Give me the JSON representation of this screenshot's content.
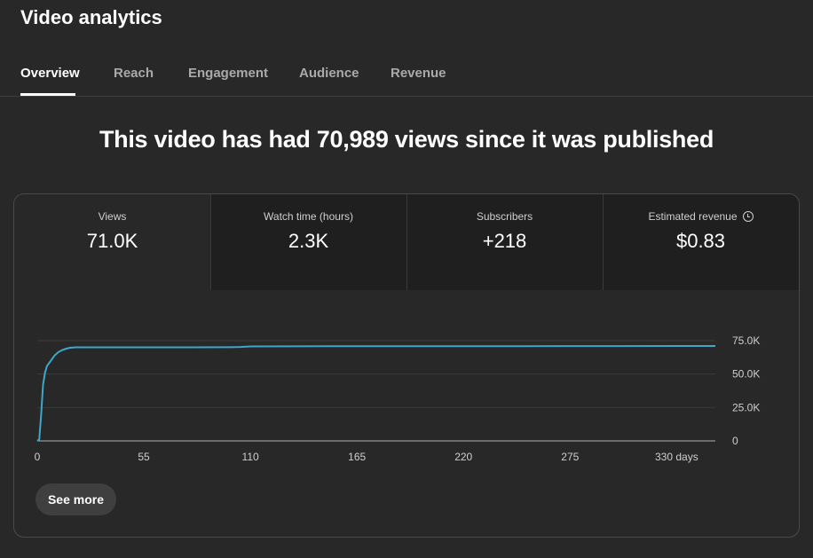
{
  "header": {
    "title": "Video analytics"
  },
  "tabs": [
    {
      "label": "Overview",
      "active": true
    },
    {
      "label": "Reach"
    },
    {
      "label": "Engagement"
    },
    {
      "label": "Audience"
    },
    {
      "label": "Revenue"
    }
  ],
  "headline": "This video has had 70,989 views since it was published",
  "metrics": [
    {
      "label": "Views",
      "value": "71.0K",
      "active": true
    },
    {
      "label": "Watch time (hours)",
      "value": "2.3K"
    },
    {
      "label": "Subscribers",
      "value": "+218"
    },
    {
      "label": "Estimated revenue",
      "value": "$0.83",
      "icon": "clock-icon"
    }
  ],
  "see_more_label": "See more",
  "colors": {
    "line": "#3ea6c9",
    "background": "#282828",
    "tile": "#1f1f1f"
  },
  "chart_data": {
    "type": "line",
    "series": [
      {
        "values_x": [
          0,
          1,
          2,
          3,
          4,
          5,
          7,
          9,
          11,
          13,
          15,
          17,
          20,
          25,
          40,
          60,
          80,
          100,
          105,
          110,
          150,
          200,
          250,
          300,
          350
        ],
        "values_y": [
          0,
          1000,
          20000,
          42000,
          51000,
          56000,
          60000,
          64000,
          66500,
          68000,
          69000,
          69700,
          70000,
          70000,
          70000,
          70000,
          70000,
          70100,
          70300,
          70700,
          70800,
          70850,
          70900,
          70950,
          70989
        ]
      }
    ],
    "x_ticks": [
      "0",
      "55",
      "110",
      "165",
      "220",
      "275",
      "330 days"
    ],
    "x_tick_values": [
      0,
      55,
      110,
      165,
      220,
      275,
      330
    ],
    "y_ticks": [
      "0",
      "25.0K",
      "50.0K",
      "75.0K"
    ],
    "y_tick_values": [
      0,
      25000,
      50000,
      75000
    ],
    "xlim": [
      0,
      350
    ],
    "ylim": [
      0,
      75000
    ],
    "grid": true
  }
}
